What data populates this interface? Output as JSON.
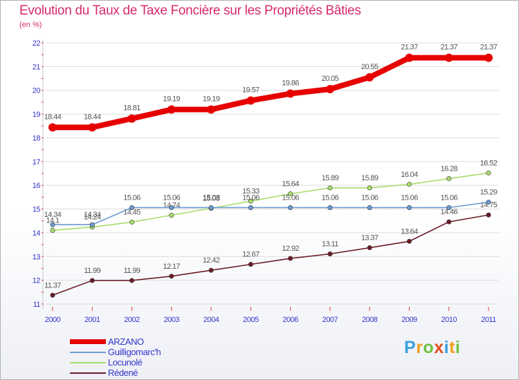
{
  "title": "Evolution du Taux de Taxe Foncière sur les Propriétés Bâties",
  "unit": "(en %)",
  "brand": "Proxiti",
  "colors": {
    "title": "#d42a6c",
    "axis_label": "#3535c8",
    "grid": "#dcdcdc"
  },
  "chart_data": {
    "type": "line",
    "title": "Evolution du Taux de Taxe Foncière sur les Propriétés Bâties",
    "ylabel": "(en %)",
    "xlabel": "",
    "ylim": [
      11,
      22
    ],
    "yticks": [
      "11",
      "12",
      "13",
      "14",
      "15",
      "16",
      "17",
      "18",
      "19",
      "20",
      "21",
      "22"
    ],
    "categories": [
      "2000",
      "2001",
      "2002",
      "2003",
      "2004",
      "2005",
      "2006",
      "2007",
      "2008",
      "2009",
      "2010",
      "2011"
    ],
    "series": [
      {
        "name": "ARZANO",
        "color": "#e60000",
        "values": [
          18.44,
          18.44,
          18.81,
          19.19,
          19.19,
          19.57,
          19.86,
          20.05,
          20.55,
          21.37,
          21.37,
          21.37
        ],
        "labels": [
          "18.44",
          "18.44",
          "18.81",
          "19.19",
          "19.19",
          "19.57",
          "19.86",
          "20.05",
          "20.55",
          "21.37",
          "21.37",
          "21.37"
        ]
      },
      {
        "name": "Guilligomarc'h",
        "color": "#6b9bd1",
        "values": [
          14.34,
          14.34,
          15.06,
          15.06,
          15.06,
          15.06,
          15.06,
          15.06,
          15.06,
          15.06,
          15.06,
          15.29
        ],
        "labels": [
          "14.34",
          "14.34",
          "15.06",
          "15.06",
          "15.06",
          "15.06",
          "15.06",
          "15.06",
          "15.06",
          "15.06",
          "15.06",
          "15.29"
        ]
      },
      {
        "name": "Locunolé",
        "color": "#a8dc6c",
        "values": [
          14.1,
          14.24,
          14.45,
          14.74,
          15.03,
          15.33,
          15.64,
          15.89,
          15.89,
          16.04,
          16.28,
          16.52
        ],
        "labels": [
          "14.1",
          "14.24",
          "14.45",
          "14.74",
          "15.03",
          "15.33",
          "15.64",
          "15.89",
          "15.89",
          "16.04",
          "16.28",
          "16.52"
        ]
      },
      {
        "name": "Rédené",
        "color": "#6b1c26",
        "values": [
          11.37,
          11.99,
          11.99,
          12.17,
          12.42,
          12.67,
          12.92,
          13.11,
          13.37,
          13.64,
          14.46,
          14.75
        ],
        "labels": [
          "11.37",
          "11.99",
          "11.99",
          "12.17",
          "12.42",
          "12.67",
          "12.92",
          "13.11",
          "13.37",
          "13.64",
          "14.46",
          "14.75"
        ]
      }
    ]
  }
}
